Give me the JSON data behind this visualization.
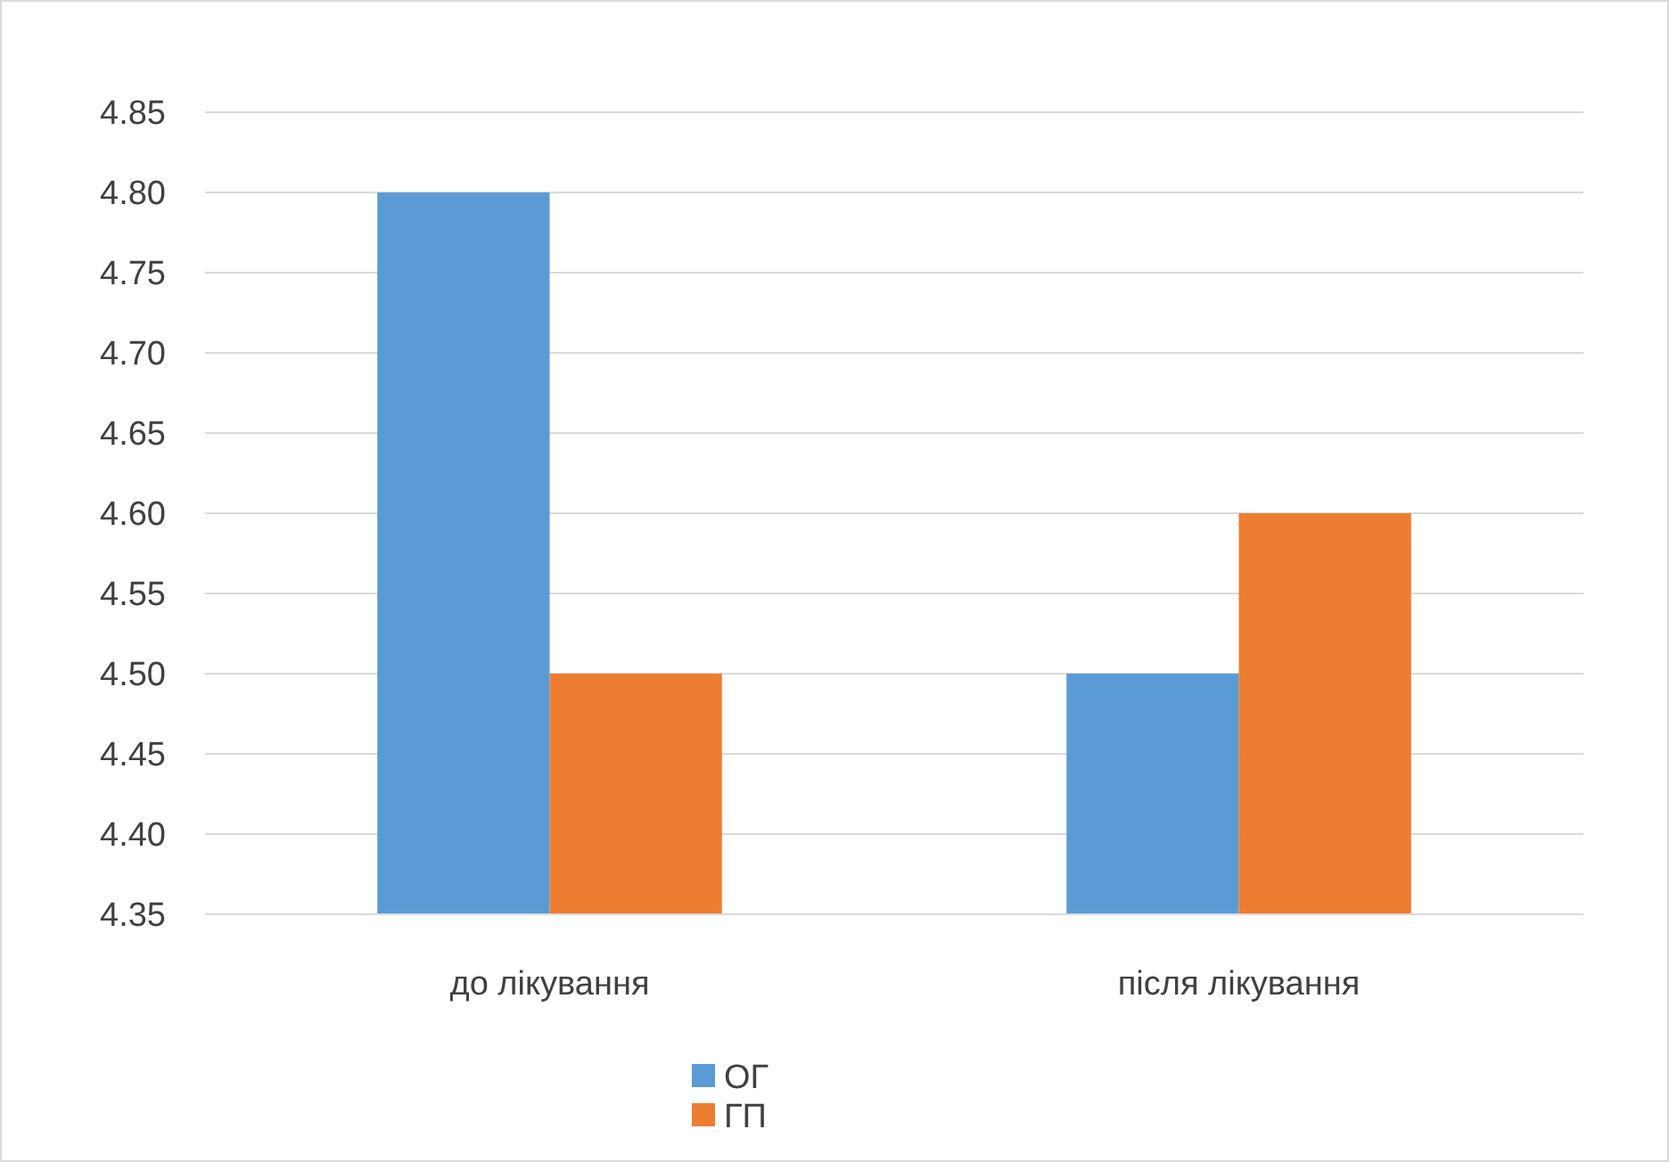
{
  "chart_data": {
    "type": "bar",
    "categories": [
      "до лікування",
      "після лікування"
    ],
    "series": [
      {
        "name": "ОГ",
        "color": "#5b9bd5",
        "values": [
          4.8,
          4.5
        ]
      },
      {
        "name": "ГП",
        "color": "#ed7d31",
        "values": [
          4.5,
          4.6
        ]
      }
    ],
    "ylim": [
      4.35,
      4.85
    ],
    "yticks": [
      4.35,
      {
        "value": 4.4,
        "label": "4.40"
      },
      4.45,
      {
        "value": 4.5,
        "label": "4.50"
      },
      4.55,
      {
        "value": 4.6,
        "label": "4.60"
      },
      4.65,
      {
        "value": 4.7,
        "label": "4.70"
      },
      4.75,
      {
        "value": 4.8,
        "label": "4.80"
      },
      4.85
    ],
    "grid": "y",
    "legend": "bottom"
  }
}
